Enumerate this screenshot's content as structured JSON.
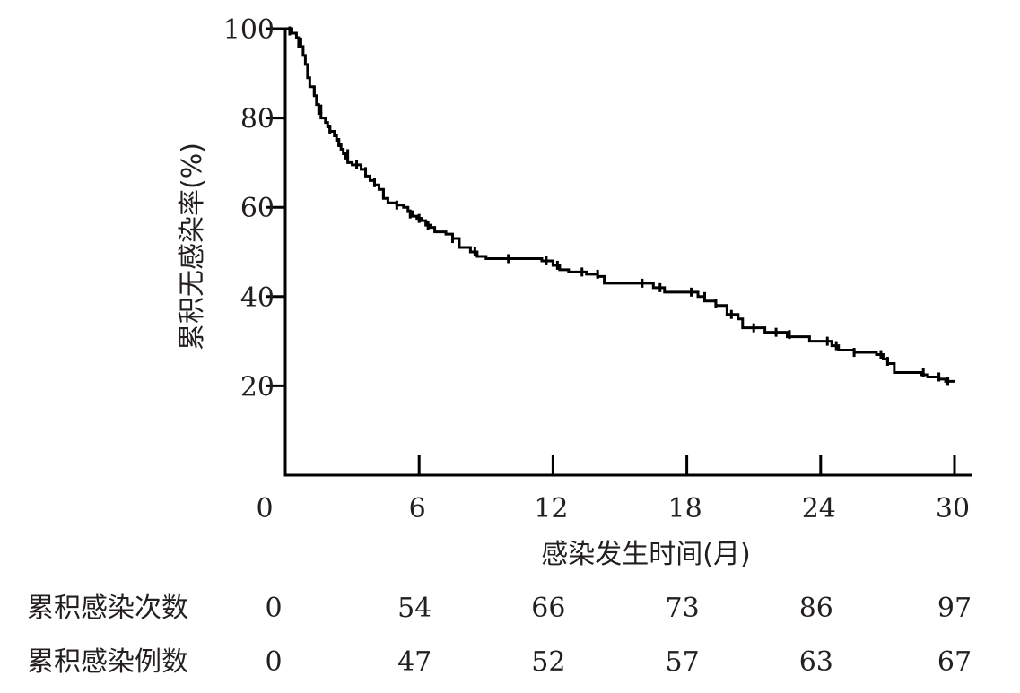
{
  "chart_data": {
    "type": "line",
    "subtype": "kaplan-meier-step",
    "ylabel": "累积无感染率(%)",
    "xlabel": "感染发生时间(月)",
    "xlim": [
      0,
      30
    ],
    "ylim": [
      0,
      100
    ],
    "xticks": [
      0,
      6,
      12,
      18,
      24,
      30
    ],
    "yticks": [
      20,
      40,
      60,
      80,
      100
    ],
    "grid": false,
    "legend": "none",
    "line_color": "#000000",
    "series": [
      {
        "step_points": [
          [
            0,
            100
          ],
          [
            0.3,
            99
          ],
          [
            0.5,
            98
          ],
          [
            0.6,
            96
          ],
          [
            0.8,
            94
          ],
          [
            0.9,
            92
          ],
          [
            1.0,
            89
          ],
          [
            1.1,
            87
          ],
          [
            1.3,
            85
          ],
          [
            1.4,
            83
          ],
          [
            1.5,
            81
          ],
          [
            1.6,
            80
          ],
          [
            1.8,
            79
          ],
          [
            1.9,
            78
          ],
          [
            2.0,
            77
          ],
          [
            2.2,
            76
          ],
          [
            2.3,
            75
          ],
          [
            2.4,
            74
          ],
          [
            2.5,
            73
          ],
          [
            2.6,
            72
          ],
          [
            2.7,
            71
          ],
          [
            2.8,
            70
          ],
          [
            3.0,
            69.5
          ],
          [
            3.4,
            68.5
          ],
          [
            3.6,
            67
          ],
          [
            3.8,
            66
          ],
          [
            4.0,
            65
          ],
          [
            4.2,
            64
          ],
          [
            4.4,
            62
          ],
          [
            4.6,
            61
          ],
          [
            5.0,
            60.5
          ],
          [
            5.3,
            60
          ],
          [
            5.5,
            59
          ],
          [
            5.7,
            58
          ],
          [
            5.9,
            57.5
          ],
          [
            6.1,
            57
          ],
          [
            6.3,
            56
          ],
          [
            6.5,
            55.5
          ],
          [
            6.7,
            54.5
          ],
          [
            7.2,
            54
          ],
          [
            7.5,
            53
          ],
          [
            7.8,
            51
          ],
          [
            8.3,
            50
          ],
          [
            8.6,
            49
          ],
          [
            9.0,
            48.5
          ],
          [
            10.0,
            48.5
          ],
          [
            11.5,
            48
          ],
          [
            12.0,
            47
          ],
          [
            12.3,
            46
          ],
          [
            12.7,
            45.5
          ],
          [
            13.5,
            45
          ],
          [
            14.0,
            44.5
          ],
          [
            14.3,
            43
          ],
          [
            16.0,
            43
          ],
          [
            16.5,
            42
          ],
          [
            17.0,
            41
          ],
          [
            18.0,
            41
          ],
          [
            18.5,
            40
          ],
          [
            18.8,
            39
          ],
          [
            19.3,
            38
          ],
          [
            19.8,
            36
          ],
          [
            20.3,
            35
          ],
          [
            20.5,
            33
          ],
          [
            21.0,
            33
          ],
          [
            21.5,
            32
          ],
          [
            22.0,
            32
          ],
          [
            22.5,
            31
          ],
          [
            23.0,
            31
          ],
          [
            23.5,
            30
          ],
          [
            24.0,
            30
          ],
          [
            24.5,
            29
          ],
          [
            24.8,
            28
          ],
          [
            25.5,
            27.5
          ],
          [
            26.5,
            27
          ],
          [
            26.8,
            26
          ],
          [
            27.0,
            25
          ],
          [
            27.3,
            23
          ],
          [
            28.0,
            23
          ],
          [
            28.5,
            22.5
          ],
          [
            28.8,
            22
          ],
          [
            29.3,
            21.5
          ],
          [
            29.6,
            21
          ],
          [
            30.0,
            21
          ]
        ],
        "censor_marks": [
          [
            0.2,
            99.5
          ],
          [
            0.7,
            97
          ],
          [
            1.3,
            86
          ],
          [
            1.6,
            82
          ],
          [
            2.0,
            77.5
          ],
          [
            2.4,
            74.5
          ],
          [
            2.8,
            72
          ],
          [
            3.2,
            69.5
          ],
          [
            3.6,
            68
          ],
          [
            4.0,
            65.5
          ],
          [
            4.4,
            63
          ],
          [
            5.0,
            60.5
          ],
          [
            5.6,
            58.5
          ],
          [
            6.0,
            57.5
          ],
          [
            6.4,
            56
          ],
          [
            7.5,
            53
          ],
          [
            8.5,
            50
          ],
          [
            10.0,
            48.5
          ],
          [
            11.7,
            48
          ],
          [
            12.2,
            47
          ],
          [
            13.3,
            45.5
          ],
          [
            14.0,
            45
          ],
          [
            16.0,
            43
          ],
          [
            16.8,
            42
          ],
          [
            18.2,
            41
          ],
          [
            18.8,
            40
          ],
          [
            19.3,
            38.5
          ],
          [
            20.0,
            36
          ],
          [
            21.0,
            33
          ],
          [
            22.0,
            32
          ],
          [
            22.6,
            31.5
          ],
          [
            24.3,
            30
          ],
          [
            24.7,
            29
          ],
          [
            25.5,
            27.5
          ],
          [
            26.7,
            27
          ],
          [
            27.0,
            25.5
          ],
          [
            28.6,
            23
          ],
          [
            29.3,
            22
          ],
          [
            29.7,
            21
          ]
        ]
      }
    ],
    "risk_table": {
      "x": [
        0,
        6,
        12,
        18,
        24,
        30
      ],
      "rows": [
        {
          "label": "累积感染次数",
          "values": [
            "0",
            "54",
            "66",
            "73",
            "86",
            "97"
          ]
        },
        {
          "label": "累积感染例数",
          "values": [
            "0",
            "47",
            "52",
            "57",
            "63",
            "67"
          ]
        }
      ]
    }
  }
}
